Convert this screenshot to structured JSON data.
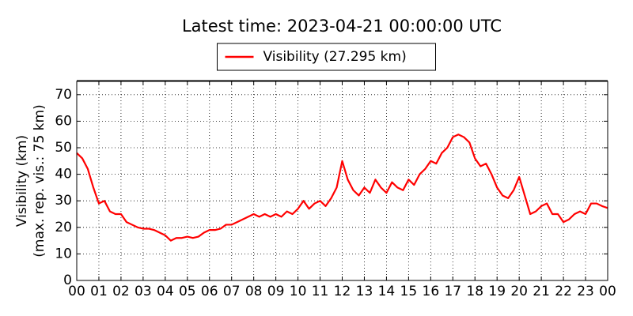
{
  "chart_data": {
    "type": "line",
    "title": "Latest time: 2023-04-21 00:00:00 UTC",
    "y_label": [
      "Visibility (km)",
      "(max. rep. vis.: 75 km)"
    ],
    "legend": "upper center",
    "grid": true,
    "xlim": [
      0,
      24
    ],
    "ylim": [
      0,
      75
    ],
    "yticks": [
      0,
      10,
      20,
      30,
      40,
      50,
      60,
      70
    ],
    "xticks": [
      {
        "value": 0,
        "label": "00"
      },
      {
        "value": 1,
        "label": "01"
      },
      {
        "value": 2,
        "label": "02"
      },
      {
        "value": 3,
        "label": "03"
      },
      {
        "value": 4,
        "label": "04"
      },
      {
        "value": 5,
        "label": "05"
      },
      {
        "value": 6,
        "label": "06"
      },
      {
        "value": 7,
        "label": "07"
      },
      {
        "value": 8,
        "label": "08"
      },
      {
        "value": 9,
        "label": "09"
      },
      {
        "value": 10,
        "label": "10"
      },
      {
        "value": 11,
        "label": "11"
      },
      {
        "value": 12,
        "label": "12"
      },
      {
        "value": 13,
        "label": "13"
      },
      {
        "value": 14,
        "label": "14"
      },
      {
        "value": 15,
        "label": "15"
      },
      {
        "value": 16,
        "label": "16"
      },
      {
        "value": 17,
        "label": "17"
      },
      {
        "value": 18,
        "label": "18"
      },
      {
        "value": 19,
        "label": "19"
      },
      {
        "value": 20,
        "label": "20"
      },
      {
        "value": 21,
        "label": "21"
      },
      {
        "value": 22,
        "label": "22"
      },
      {
        "value": 23,
        "label": "23"
      },
      {
        "value": 24,
        "label": "00"
      }
    ],
    "x": [
      0,
      0.25,
      0.5,
      0.75,
      1,
      1.25,
      1.5,
      1.75,
      2,
      2.25,
      2.5,
      2.75,
      3,
      3.25,
      3.5,
      3.75,
      4,
      4.25,
      4.5,
      4.75,
      5,
      5.25,
      5.5,
      5.75,
      6,
      6.25,
      6.5,
      6.75,
      7,
      7.25,
      7.5,
      7.75,
      8,
      8.25,
      8.5,
      8.75,
      9,
      9.25,
      9.5,
      9.75,
      10,
      10.25,
      10.5,
      10.75,
      11,
      11.25,
      11.5,
      11.75,
      12,
      12.25,
      12.5,
      12.75,
      13,
      13.25,
      13.5,
      13.75,
      14,
      14.25,
      14.5,
      14.75,
      15,
      15.25,
      15.5,
      15.75,
      16,
      16.25,
      16.5,
      16.75,
      17,
      17.25,
      17.5,
      17.75,
      18,
      18.25,
      18.5,
      18.75,
      19,
      19.25,
      19.5,
      19.75,
      20,
      20.25,
      20.5,
      20.75,
      21,
      21.25,
      21.5,
      21.75,
      22,
      22.25,
      22.5,
      22.75,
      23,
      23.25,
      23.5,
      23.75,
      24
    ],
    "series": [
      {
        "name": "Visibility (27.295 km)",
        "color": "#ff0000",
        "values": [
          48,
          46,
          42,
          35,
          29,
          30,
          26,
          25,
          25,
          22,
          21,
          20,
          19.5,
          19.5,
          19,
          18,
          17,
          15,
          16,
          16,
          16.5,
          16,
          16.5,
          18,
          19,
          19,
          19.5,
          21,
          21,
          22,
          23,
          24,
          25,
          24,
          25,
          24,
          25,
          24,
          26,
          25,
          27,
          30,
          27,
          29,
          30,
          28,
          31,
          35,
          45,
          38,
          34,
          32,
          35,
          33,
          38,
          35,
          33,
          37,
          35,
          34,
          38,
          36,
          40,
          42,
          45,
          44,
          48,
          50,
          54,
          55,
          54,
          52,
          46,
          43,
          44,
          40,
          35,
          32,
          31,
          34,
          39,
          32,
          25,
          26,
          28,
          29,
          25,
          25,
          22,
          23,
          25,
          26,
          25,
          29,
          29,
          28,
          27.295
        ]
      }
    ]
  }
}
